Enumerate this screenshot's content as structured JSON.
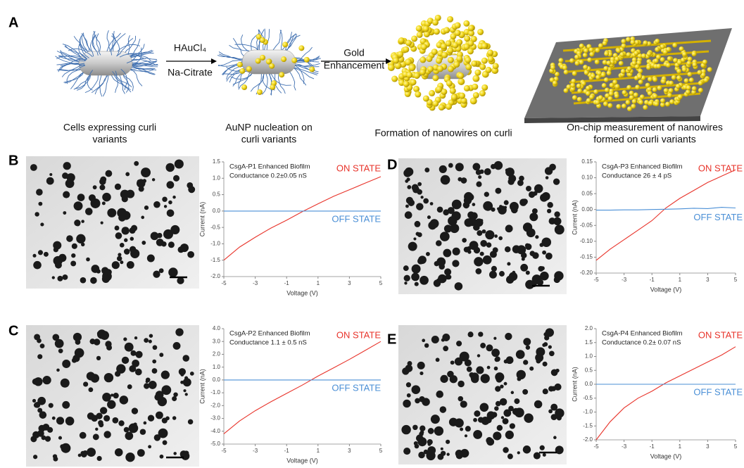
{
  "panels": [
    "A",
    "B",
    "C",
    "D",
    "E"
  ],
  "arrows": {
    "first_top": "HAuCl₄",
    "first_bottom": "Na-Citrate",
    "second": [
      "Gold",
      "Enhancement"
    ]
  },
  "captions": [
    [
      "Cells expressing curli",
      "variants"
    ],
    [
      "AuNP nucleation on",
      "curli variants"
    ],
    [
      "Formation of nanowires on curli"
    ],
    [
      "On-chip measurement of nanowires",
      "formed on curli variants"
    ]
  ],
  "chart_data": [
    {
      "type": "line",
      "title": "CsgA-P1 Enhanced Biofilm",
      "subtitle": "Conductance 0.2±0.05 nS",
      "x_label": "Voltage (V)",
      "y_label": "Current (nA)",
      "x": [
        -5,
        -4,
        -3,
        -2,
        -1,
        0,
        1,
        2,
        3,
        4,
        5
      ],
      "series": [
        {
          "name": "ON STATE",
          "color": "#e8332a",
          "values": [
            -1.5,
            -1.1,
            -0.8,
            -0.52,
            -0.28,
            -0.02,
            0.22,
            0.45,
            0.65,
            0.85,
            1.05
          ]
        },
        {
          "name": "OFF STATE",
          "color": "#4a8fd6",
          "values": [
            0,
            0,
            0,
            0,
            0,
            0,
            0,
            0,
            0,
            0,
            0
          ]
        }
      ],
      "xlim": [
        -5,
        5
      ],
      "xticks": [
        -5,
        -3,
        -1,
        1,
        3,
        5
      ],
      "ylim": [
        -2,
        1.5
      ],
      "yticks": [
        {
          "value": -2,
          "label": "-2.0"
        },
        {
          "value": -1.5,
          "label": "-1.5"
        },
        {
          "value": -1,
          "label": "-1.0"
        },
        {
          "value": -0.5,
          "label": "-0.5"
        },
        {
          "value": 0,
          "label": "0.0"
        },
        {
          "value": 0.5,
          "label": "0.5"
        },
        {
          "value": 1,
          "label": "1.0"
        },
        {
          "value": 1.5,
          "label": "1.5"
        }
      ]
    },
    {
      "type": "line",
      "title": "CsgA-P2 Enhanced Biofilm",
      "subtitle": "Conductance 1.1 ± 0.5 nS",
      "x_label": "Voltage (V)",
      "y_label": "Current (nA)",
      "x": [
        -5,
        -4,
        -3,
        -2,
        -1,
        0,
        1,
        2,
        3,
        4,
        5
      ],
      "series": [
        {
          "name": "ON STATE",
          "color": "#e8332a",
          "values": [
            -4.2,
            -3.2,
            -2.4,
            -1.7,
            -1.05,
            -0.4,
            0.3,
            0.95,
            1.6,
            2.3,
            3.0
          ]
        },
        {
          "name": "OFF STATE",
          "color": "#4a8fd6",
          "values": [
            0,
            0,
            0,
            0,
            0,
            0,
            0,
            0,
            0,
            0,
            0
          ]
        }
      ],
      "xlim": [
        -5,
        5
      ],
      "xticks": [
        -5,
        -3,
        -1,
        1,
        3,
        5
      ],
      "ylim": [
        -5,
        4
      ],
      "yticks": [
        {
          "value": -5,
          "label": "-5.0"
        },
        {
          "value": -4,
          "label": "-4.0"
        },
        {
          "value": -3,
          "label": "-3.0"
        },
        {
          "value": -2,
          "label": "-2.0"
        },
        {
          "value": -1,
          "label": "-1.0"
        },
        {
          "value": 0,
          "label": "0.0"
        },
        {
          "value": 1,
          "label": "1.0"
        },
        {
          "value": 2,
          "label": "2.0"
        },
        {
          "value": 3,
          "label": "3.0"
        },
        {
          "value": 4,
          "label": "4.0"
        }
      ]
    },
    {
      "type": "line",
      "title": "CsgA-P3 Enhanced Biofilm",
      "subtitle": "Conductance 26 ± 4 pS",
      "x_label": "Voltage (V)",
      "y_label": "Current (nA)",
      "x": [
        -5,
        -4,
        -3,
        -2,
        -1,
        0,
        1,
        2,
        3,
        4,
        5
      ],
      "series": [
        {
          "name": "ON STATE",
          "color": "#e8332a",
          "values": [
            -0.16,
            -0.125,
            -0.095,
            -0.065,
            -0.035,
            0.005,
            0.035,
            0.06,
            0.085,
            0.105,
            0.125
          ]
        },
        {
          "name": "OFF STATE",
          "color": "#4a8fd6",
          "values": [
            -0.002,
            -0.002,
            -0.001,
            -0.001,
            0,
            0.001,
            0.002,
            0.004,
            0.003,
            0.007,
            0.005
          ]
        }
      ],
      "xlim": [
        -5,
        5
      ],
      "xticks": [
        -5,
        -3,
        -1,
        1,
        3,
        5
      ],
      "ylim": [
        -0.2,
        0.15
      ],
      "yticks": [
        {
          "value": -0.2,
          "label": "-0.20"
        },
        {
          "value": -0.15,
          "label": "-0.15"
        },
        {
          "value": -0.1,
          "label": "-0.10"
        },
        {
          "value": -0.05,
          "label": "-0.05"
        },
        {
          "value": 0,
          "label": "0.00"
        },
        {
          "value": 0.05,
          "label": "0.05"
        },
        {
          "value": 0.1,
          "label": "0.10"
        },
        {
          "value": 0.15,
          "label": "0.15"
        }
      ]
    },
    {
      "type": "line",
      "title": "CsgA-P4 Enhanced Biofilm",
      "subtitle": "Conductance 0.2± 0.07 nS",
      "x_label": "Voltage (V)",
      "y_label": "Current (nA)",
      "x": [
        -5,
        -4,
        -3,
        -2,
        -1,
        0,
        1,
        2,
        3,
        4,
        5
      ],
      "series": [
        {
          "name": "ON STATE",
          "color": "#e8332a",
          "values": [
            -2.0,
            -1.35,
            -0.85,
            -0.5,
            -0.25,
            0.05,
            0.3,
            0.55,
            0.8,
            1.05,
            1.35
          ]
        },
        {
          "name": "OFF STATE",
          "color": "#4a8fd6",
          "values": [
            0,
            0,
            0,
            0,
            0,
            0,
            0,
            0,
            0,
            0,
            0
          ]
        }
      ],
      "xlim": [
        -5,
        5
      ],
      "xticks": [
        -5,
        -3,
        -1,
        1,
        3,
        5
      ],
      "ylim": [
        -2,
        2
      ],
      "yticks": [
        {
          "value": -2,
          "label": "-2.0"
        },
        {
          "value": -1.5,
          "label": "-1.5"
        },
        {
          "value": -1,
          "label": "-1.0"
        },
        {
          "value": -0.5,
          "label": "-0.5"
        },
        {
          "value": 0,
          "label": "0.0"
        },
        {
          "value": 0.5,
          "label": "0.5"
        },
        {
          "value": 1,
          "label": "1.0"
        },
        {
          "value": 1.5,
          "label": "1.5"
        },
        {
          "value": 2,
          "label": "2.0"
        }
      ]
    }
  ]
}
